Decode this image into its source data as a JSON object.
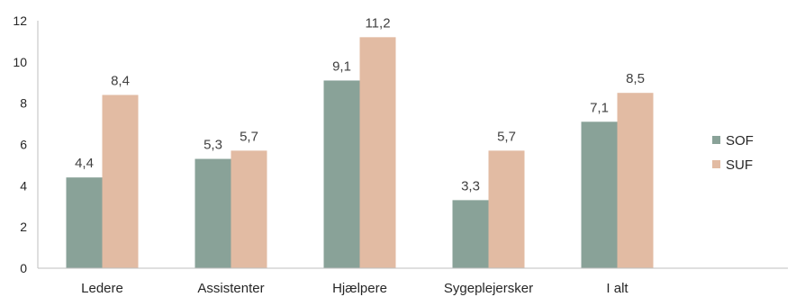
{
  "chart_data": {
    "type": "bar",
    "categories": [
      "Ledere",
      "Assistenter",
      "Hjælpere",
      "Sygeplejersker",
      "I alt"
    ],
    "series": [
      {
        "name": "SOF",
        "values": [
          4.4,
          5.3,
          9.1,
          3.3,
          7.1
        ],
        "labels": [
          "4,4",
          "5,3",
          "9,1",
          "3,3",
          "7,1"
        ],
        "color": "#89a298"
      },
      {
        "name": "SUF",
        "values": [
          8.4,
          5.7,
          11.2,
          5.7,
          8.5
        ],
        "labels": [
          "8,4",
          "5,7",
          "11,2",
          "5,7",
          "8,5"
        ],
        "color": "#e2bba3"
      }
    ],
    "ylim": [
      0,
      12
    ],
    "yticks": [
      0,
      2,
      4,
      6,
      8,
      10,
      12
    ],
    "legend": "right",
    "grid": false,
    "axis_color": "#bfbfbf"
  }
}
